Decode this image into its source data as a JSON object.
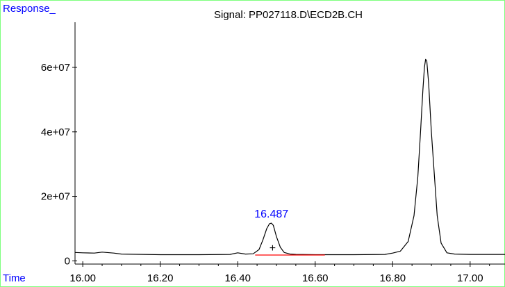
{
  "chart_data": {
    "type": "line",
    "title": "Signal: PP027118.D\\ECD2B.CH",
    "ylabel": "Response_",
    "xlabel": "Time",
    "xlim": [
      15.98,
      17.09
    ],
    "ylim": [
      -1000000,
      74000000
    ],
    "x_ticks": [
      16.0,
      16.2,
      16.4,
      16.6,
      16.8,
      17.0
    ],
    "x_tick_labels": [
      "16.00",
      "16.20",
      "16.40",
      "16.60",
      "16.80",
      "17.00"
    ],
    "y_ticks": [
      0,
      20000000,
      40000000,
      60000000
    ],
    "y_tick_labels": [
      "0",
      "2e+07",
      "4e+07",
      "6e+07"
    ],
    "grid": false,
    "series": [
      {
        "line_color": "#000000",
        "x": [
          15.98,
          16.0,
          16.03,
          16.05,
          16.08,
          16.1,
          16.2,
          16.3,
          16.38,
          16.4,
          16.42,
          16.44,
          16.455,
          16.465,
          16.475,
          16.482,
          16.487,
          16.492,
          16.5,
          16.51,
          16.52,
          16.535,
          16.55,
          16.6,
          16.7,
          16.78,
          16.8,
          16.82,
          16.84,
          16.855,
          16.865,
          16.872,
          16.878,
          16.882,
          16.885,
          16.888,
          16.893,
          16.9,
          16.908,
          16.915,
          16.925,
          16.94,
          16.96,
          17.0,
          17.09
        ],
        "y": [
          2600000,
          2500000,
          2400000,
          2700000,
          2400000,
          2100000,
          1900000,
          1900000,
          2000000,
          2500000,
          2100000,
          2200000,
          3500000,
          6500000,
          10000000,
          11500000,
          11700000,
          11000000,
          7500000,
          4200000,
          2600000,
          2100000,
          2000000,
          1900000,
          1900000,
          2000000,
          2400000,
          3000000,
          6000000,
          14000000,
          26000000,
          40000000,
          53000000,
          60000000,
          62500000,
          62000000,
          55000000,
          40000000,
          26000000,
          14000000,
          5500000,
          2500000,
          2100000,
          2000000,
          2000000
        ]
      }
    ],
    "baseline": {
      "x": [
        16.445,
        16.625
      ],
      "y": [
        1800000,
        1800000
      ],
      "color": "#ff0000"
    },
    "annotations": [
      {
        "text": "16.487",
        "x": 16.487,
        "y": 11700000,
        "color": "#0000ff"
      },
      {
        "text": "+",
        "x": 16.49,
        "y": 4000000,
        "color": "#000000"
      }
    ]
  }
}
